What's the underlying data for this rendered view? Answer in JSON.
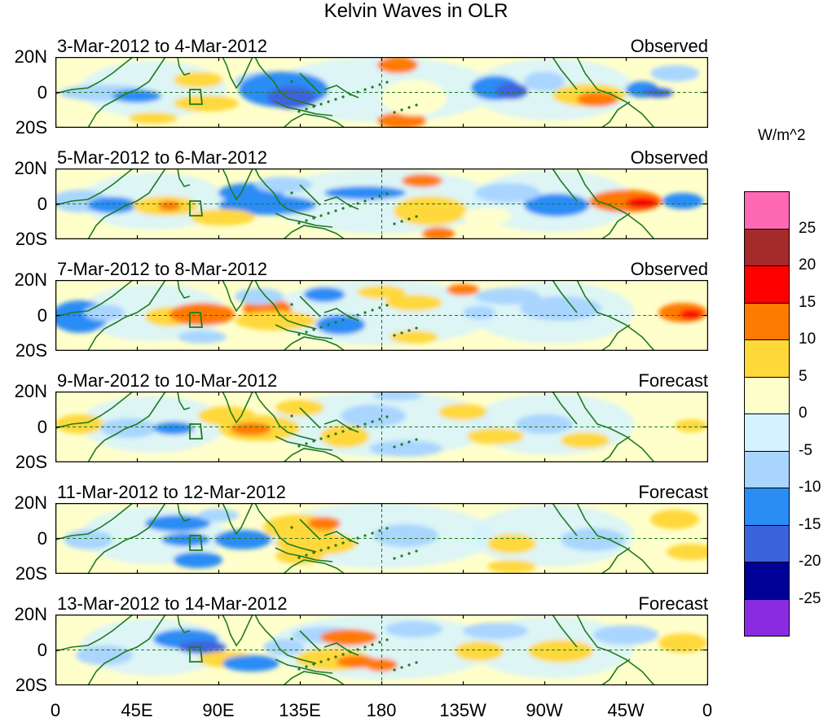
{
  "title": "Kelvin Waves in OLR",
  "panels": [
    {
      "dates": "3-Mar-2012 to 4-Mar-2012",
      "status": "Observed"
    },
    {
      "dates": "5-Mar-2012 to 6-Mar-2012",
      "status": "Observed"
    },
    {
      "dates": "7-Mar-2012 to 8-Mar-2012",
      "status": "Observed"
    },
    {
      "dates": "9-Mar-2012 to 10-Mar-2012",
      "status": "Forecast"
    },
    {
      "dates": "11-Mar-2012 to 12-Mar-2012",
      "status": "Forecast"
    },
    {
      "dates": "13-Mar-2012 to 14-Mar-2012",
      "status": "Forecast"
    }
  ],
  "y_ticks": [
    "20N",
    "0",
    "20S"
  ],
  "x_ticks": [
    "0",
    "45E",
    "90E",
    "135E",
    "180",
    "135W",
    "90W",
    "45W",
    "0"
  ],
  "colorbar": {
    "units": "W/m^2",
    "labels": [
      "25",
      "20",
      "15",
      "10",
      "5",
      "0",
      "-5",
      "-10",
      "-15",
      "-20",
      "-25"
    ],
    "colors": [
      "#ff69b4",
      "#a52a2a",
      "#ff0000",
      "#ff7a00",
      "#ffd83a",
      "#ffffcc",
      "#d4f2ff",
      "#a9d5ff",
      "#2b8cf5",
      "#3c63dc",
      "#000096",
      "#8a2be2"
    ]
  }
}
